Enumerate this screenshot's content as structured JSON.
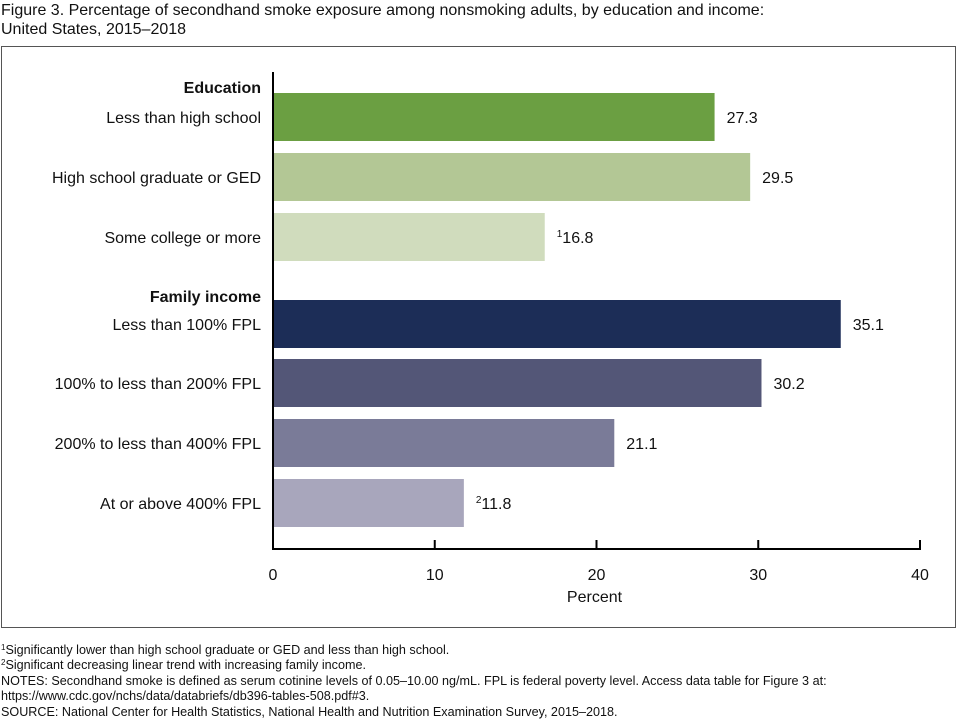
{
  "title": {
    "line1": "Figure 3. Percentage of secondhand smoke exposure among nonsmoking adults, by education and income:",
    "line2": "United States, 2015–2018"
  },
  "chart_data": {
    "type": "bar",
    "orientation": "horizontal",
    "title": "Percentage of secondhand smoke exposure among nonsmoking adults, by education and income: United States, 2015–2018",
    "xlabel": "Percent",
    "ylabel": "",
    "xlim": [
      0,
      40
    ],
    "xticks": [
      0,
      10,
      20,
      30,
      40
    ],
    "grid": false,
    "legend": "none",
    "groups": [
      {
        "name": "Education",
        "categories": [
          {
            "label": "Less than high school",
            "value": 27.3,
            "display": "27.3",
            "footnote": "",
            "color": "#6b9f42"
          },
          {
            "label": "High school graduate or GED",
            "value": 29.5,
            "display": "29.5",
            "footnote": "",
            "color": "#b3c795"
          },
          {
            "label": "Some college or more",
            "value": 16.8,
            "display": "16.8",
            "footnote": "1",
            "color": "#d0dcbd"
          }
        ]
      },
      {
        "name": "Family income",
        "categories": [
          {
            "label": "Less than 100% FPL",
            "value": 35.1,
            "display": "35.1",
            "footnote": "",
            "color": "#1c2d57"
          },
          {
            "label": "100% to less than 200% FPL",
            "value": 30.2,
            "display": "30.2",
            "footnote": "",
            "color": "#535677"
          },
          {
            "label": "200% to less than 400% FPL",
            "value": 21.1,
            "display": "21.1",
            "footnote": "",
            "color": "#7a7b98"
          },
          {
            "label": "At or above 400% FPL",
            "value": 11.8,
            "display": "11.8",
            "footnote": "2",
            "color": "#a8a6bc"
          }
        ]
      }
    ]
  },
  "notes": {
    "footnote1_mark": "1",
    "footnote1": "Significantly lower than high school graduate or GED and less than high school.",
    "footnote2_mark": "2",
    "footnote2": "Significant decreasing linear trend with increasing family income.",
    "notes_line1": "NOTES: Secondhand smoke is defined as serum cotinine levels of 0.05–10.00 ng/mL. FPL is federal poverty level. Access data table for Figure 3 at:",
    "notes_line2": "https://www.cdc.gov/nchs/data/databriefs/db396-tables-508.pdf#3.",
    "source": "SOURCE: National Center for Health Statistics, National Health and Nutrition Examination Survey, 2015–2018."
  }
}
